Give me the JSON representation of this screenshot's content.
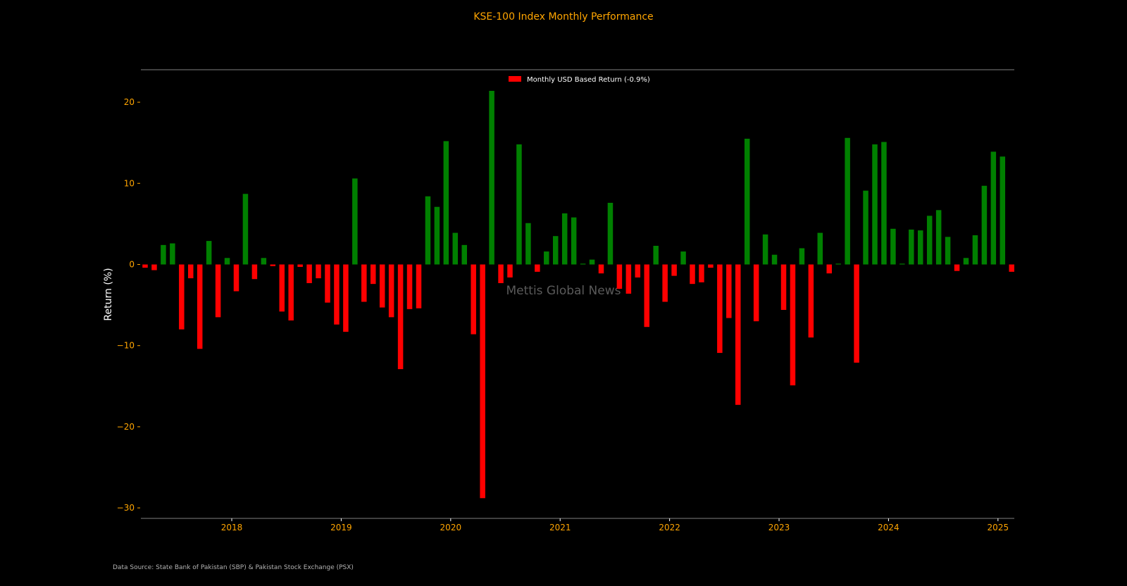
{
  "chart_data": {
    "type": "bar",
    "title": "KSE-100 Index Monthly Performance",
    "ylabel": "Return (%)",
    "ylim": [
      -31.3,
      24.2
    ],
    "yticks": [
      20,
      10,
      0,
      -10,
      -20,
      -30
    ],
    "xticks": [
      "2018",
      "2019",
      "2020",
      "2021",
      "2022",
      "2023",
      "2024",
      "2025"
    ],
    "legend": {
      "label": "Monthly USD Based Return (-0.9%)",
      "placement": "top-center"
    },
    "watermark": "Mettis Global News",
    "colors": {
      "positive": "#008000",
      "negative": "#ff0000",
      "title": "#ffa500",
      "ticks": "#ffa500",
      "spines": "#808080"
    },
    "start_month": "2017-03",
    "values": [
      -0.4,
      -0.7,
      2.4,
      2.6,
      -8.0,
      -1.7,
      -10.4,
      2.9,
      -6.5,
      0.8,
      -3.3,
      8.7,
      -1.8,
      0.8,
      -0.2,
      -5.8,
      -6.9,
      -0.3,
      -2.3,
      -1.7,
      -4.7,
      -7.4,
      -8.3,
      10.6,
      -4.6,
      -2.4,
      -5.3,
      -6.5,
      -12.9,
      -5.5,
      -5.4,
      8.4,
      7.1,
      15.2,
      3.9,
      2.4,
      -8.6,
      -28.8,
      21.4,
      -2.3,
      -1.6,
      14.8,
      5.1,
      -0.9,
      1.6,
      3.5,
      6.3,
      5.8,
      0.1,
      0.6,
      -1.1,
      7.6,
      -3.0,
      -3.6,
      -1.6,
      -7.7,
      2.3,
      -4.6,
      -1.4,
      1.6,
      -2.4,
      -2.2,
      -0.4,
      -10.9,
      -6.6,
      -17.3,
      15.5,
      -7.0,
      3.7,
      1.2,
      -5.6,
      -14.9,
      2.0,
      -9.0,
      3.9,
      -1.1,
      0.1,
      15.6,
      -12.1,
      9.1,
      14.8,
      15.1,
      4.4,
      0.1,
      4.3,
      4.2,
      6.0,
      6.7,
      3.4,
      -0.8,
      0.8,
      3.6,
      9.7,
      13.9,
      13.3,
      -0.9
    ]
  },
  "footer": {
    "source": "Data Source: State Bank of Pakistan (SBP) & Pakistan Stock Exchange (PSX)"
  }
}
